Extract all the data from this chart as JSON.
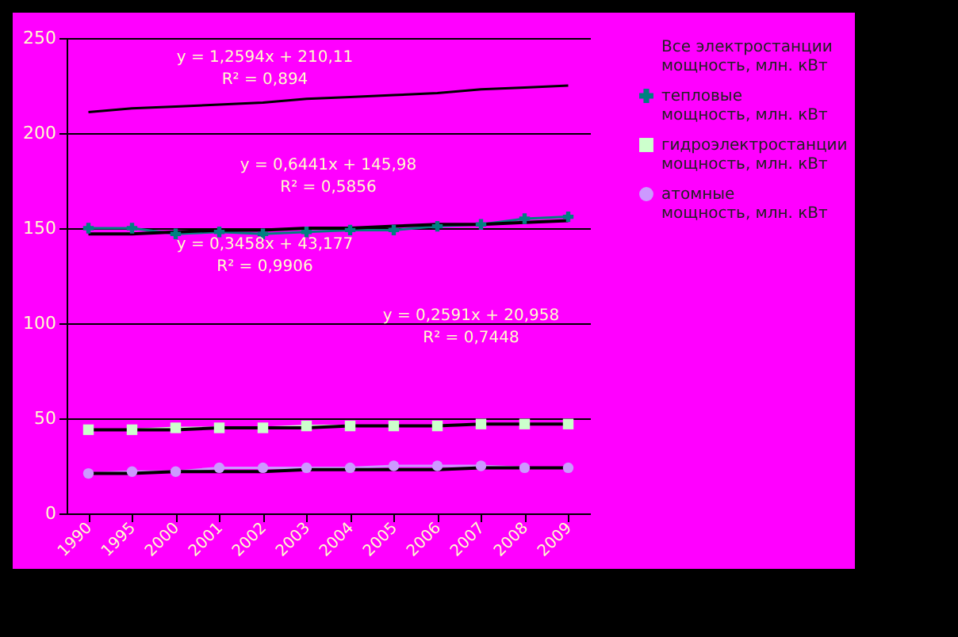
{
  "chart_data": {
    "type": "line",
    "categories": [
      "1990",
      "1995",
      "2000",
      "2001",
      "2002",
      "2003",
      "2004",
      "2005",
      "2006",
      "2007",
      "2008",
      "2009"
    ],
    "series": [
      {
        "name": "Все электростанции мощность, млн. кВт",
        "color": "#000000",
        "marker": "none",
        "values": [
          211,
          213,
          214,
          215,
          216,
          218,
          219,
          220,
          221,
          223,
          224,
          225
        ]
      },
      {
        "name": "тепловые мощность, млн. кВт",
        "color": "#008080",
        "marker": "cross",
        "values": [
          150,
          150,
          147,
          148,
          147,
          148,
          149,
          149,
          151,
          152,
          155,
          156
        ]
      },
      {
        "name": "гидроэлектростанции мощность, млн. кВт",
        "color": "#ccffcc",
        "marker": "square",
        "values": [
          44,
          44,
          45,
          45,
          45,
          46,
          46,
          46,
          46,
          47,
          47,
          47
        ]
      },
      {
        "name": "атомные мощность, млн. кВт",
        "color": "#cc99ff",
        "marker": "circle",
        "values": [
          21,
          22,
          22,
          24,
          24,
          24,
          24,
          25,
          25,
          25,
          24,
          24
        ]
      },
      {
        "type": "line",
        "color": "#000000",
        "values": [
          147,
          147,
          148,
          149,
          149,
          150,
          150,
          151,
          152,
          152,
          153,
          154
        ]
      },
      {
        "type": "line",
        "color": "#000000",
        "values": [
          44,
          44,
          44,
          45,
          45,
          45,
          46,
          46,
          46,
          47,
          47,
          47
        ]
      },
      {
        "type": "line",
        "color": "#000000",
        "values": [
          21,
          21,
          22,
          22,
          22,
          23,
          23,
          23,
          23,
          24,
          24,
          24
        ]
      }
    ],
    "ylim": [
      0,
      250
    ],
    "yticks": [
      0,
      50,
      100,
      150,
      200,
      250
    ],
    "grid": "y",
    "legend": "right",
    "annotations": [
      "y = 1,2594x + 210,11",
      "R² = 0,894",
      "y = 0,6441x + 145,98",
      "R² = 0,5856",
      "y = 0,3458x + 43,177",
      "R² = 0,9906",
      "y = 0,2591x + 20,958",
      "R² = 0,7448"
    ]
  }
}
